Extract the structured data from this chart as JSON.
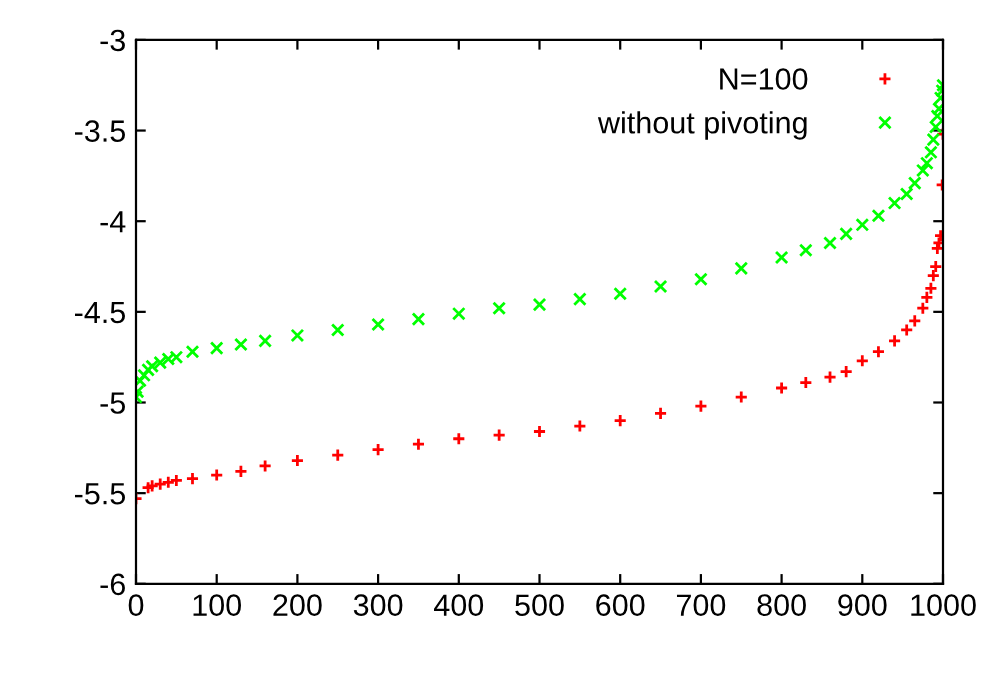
{
  "chart_data": {
    "type": "scatter",
    "legend": "top right",
    "grid": false,
    "xlim": [
      0,
      1000
    ],
    "ylim": [
      -6,
      -3
    ],
    "xticks": [
      0,
      100,
      200,
      300,
      400,
      500,
      600,
      700,
      800,
      900,
      1000
    ],
    "yticks": [
      -6,
      -5.5,
      -5,
      -4.5,
      -4,
      -3.5,
      -3
    ],
    "series": [
      {
        "name": "N=100",
        "color": "#ff0000",
        "marker": "cross",
        "x": [
          0,
          15,
          20,
          30,
          40,
          50,
          70,
          100,
          130,
          160,
          200,
          250,
          300,
          350,
          400,
          450,
          500,
          550,
          600,
          650,
          700,
          750,
          800,
          830,
          860,
          880,
          900,
          920,
          940,
          955,
          965,
          975,
          980,
          985,
          988,
          991,
          993,
          995,
          997,
          999,
          1000
        ],
        "values": [
          -5.53,
          -5.47,
          -5.46,
          -5.45,
          -5.44,
          -5.43,
          -5.42,
          -5.4,
          -5.38,
          -5.35,
          -5.32,
          -5.29,
          -5.26,
          -5.23,
          -5.2,
          -5.18,
          -5.16,
          -5.13,
          -5.1,
          -5.06,
          -5.02,
          -4.97,
          -4.92,
          -4.89,
          -4.86,
          -4.83,
          -4.77,
          -4.72,
          -4.66,
          -4.6,
          -4.55,
          -4.48,
          -4.42,
          -4.37,
          -4.3,
          -4.25,
          -4.15,
          -4.12,
          -4.08,
          -3.8,
          -3.52
        ]
      },
      {
        "name": "without pivoting",
        "color": "#00ff00",
        "marker": "x",
        "x": [
          0,
          2,
          5,
          10,
          15,
          20,
          30,
          40,
          50,
          70,
          100,
          130,
          160,
          200,
          250,
          300,
          350,
          400,
          450,
          500,
          550,
          600,
          650,
          700,
          750,
          800,
          830,
          860,
          880,
          900,
          920,
          940,
          955,
          965,
          975,
          980,
          985,
          988,
          991,
          993,
          995,
          997,
          999,
          1000
        ],
        "values": [
          -4.97,
          -4.94,
          -4.88,
          -4.85,
          -4.82,
          -4.8,
          -4.78,
          -4.76,
          -4.75,
          -4.72,
          -4.7,
          -4.68,
          -4.66,
          -4.63,
          -4.6,
          -4.57,
          -4.54,
          -4.51,
          -4.48,
          -4.46,
          -4.43,
          -4.4,
          -4.36,
          -4.32,
          -4.26,
          -4.2,
          -4.16,
          -4.12,
          -4.07,
          -4.02,
          -3.97,
          -3.9,
          -3.85,
          -3.79,
          -3.72,
          -3.68,
          -3.62,
          -3.55,
          -3.48,
          -3.42,
          -3.38,
          -3.32,
          -3.28,
          -3.25
        ]
      }
    ]
  }
}
